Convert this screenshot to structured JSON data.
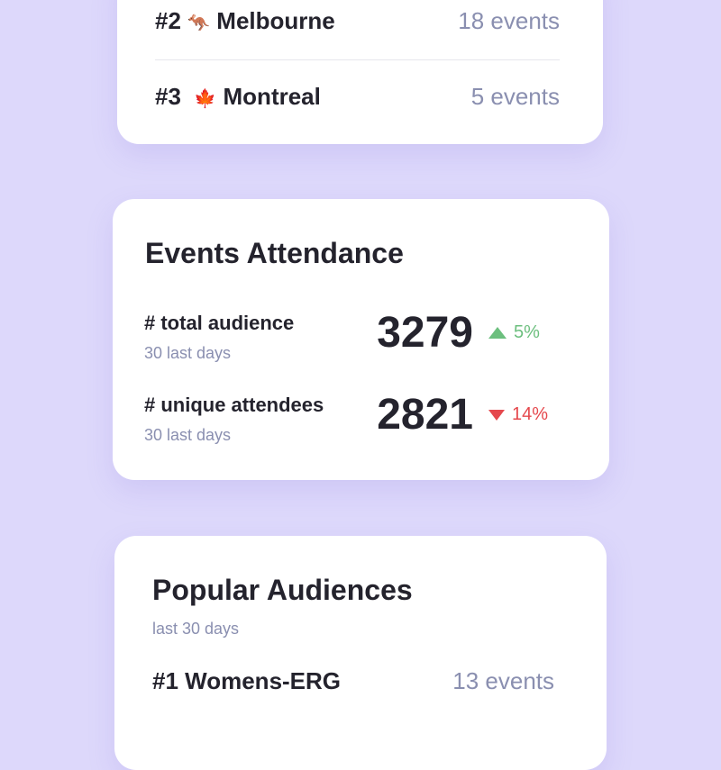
{
  "top_cities": {
    "items": [
      {
        "rank": "#2",
        "emoji": "🦘",
        "name": "Melbourne",
        "count": "18 events"
      },
      {
        "rank": "#3",
        "emoji": "🍁",
        "name": "Montreal",
        "count": "5 events"
      }
    ]
  },
  "attendance": {
    "title": "Events Attendance",
    "metrics": [
      {
        "label": "# total audience",
        "period": "30 last days",
        "value": "3279",
        "delta": "5%",
        "direction": "up"
      },
      {
        "label": "# unique attendees",
        "period": "30 last days",
        "value": "2821",
        "delta": "14%",
        "direction": "down"
      }
    ]
  },
  "audiences": {
    "title": "Popular Audiences",
    "subtitle": "last 30 days",
    "items": [
      {
        "rank": "#1",
        "name": "Womens-ERG",
        "count": "13 events"
      }
    ]
  },
  "colors": {
    "background": "#ddd8fb",
    "up": "#6cbf7e",
    "down": "#e5484d"
  }
}
